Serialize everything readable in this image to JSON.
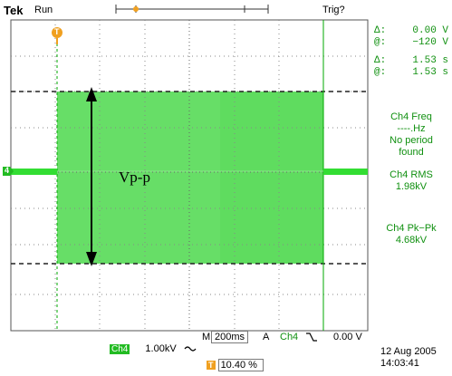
{
  "header": {
    "brand": "Tek",
    "run_state": "Run",
    "trigger_state": "Trig?"
  },
  "cursors": {
    "delta_v_label": "Δ:",
    "delta_v_value": "0.00 V",
    "at_v_label": "@:",
    "at_v_value": "−120 V",
    "delta_t_label": "Δ:",
    "delta_t_value": "1.53 s",
    "at_t_label": "@:",
    "at_t_value": "1.53 s"
  },
  "measurements": [
    {
      "label": "Ch4 Freq",
      "value": "----.Hz",
      "note": "No period found"
    },
    {
      "label": "Ch4 RMS",
      "value": "1.98kV"
    },
    {
      "label": "Ch4 Pk−Pk",
      "value": "4.68kV"
    }
  ],
  "annotation": "Vp-p",
  "markers": {
    "trigger_marker": "T",
    "channel_marker": "4"
  },
  "bottom": {
    "timebase_label": "M",
    "timebase_value": "200ms",
    "trigger_source_label": "A",
    "trigger_source": "Ch4",
    "trigger_slope_icon": "falling-edge-icon",
    "trigger_level": "0.00 V",
    "channel_badge": "Ch4",
    "channel_scale": "1.00kV",
    "channel_coupling_icon": "ac-coupling-icon",
    "trigger_position_marker": "T",
    "trigger_position": "10.40 %",
    "date": "12 Aug 2005",
    "time": "14:03:41"
  },
  "colors": {
    "trace_green": "#33dd33",
    "fill_green": "#5fdc5f",
    "cursor_green": "#00aa00",
    "readout_green": "#109010",
    "trigger_orange": "#f0a020"
  }
}
